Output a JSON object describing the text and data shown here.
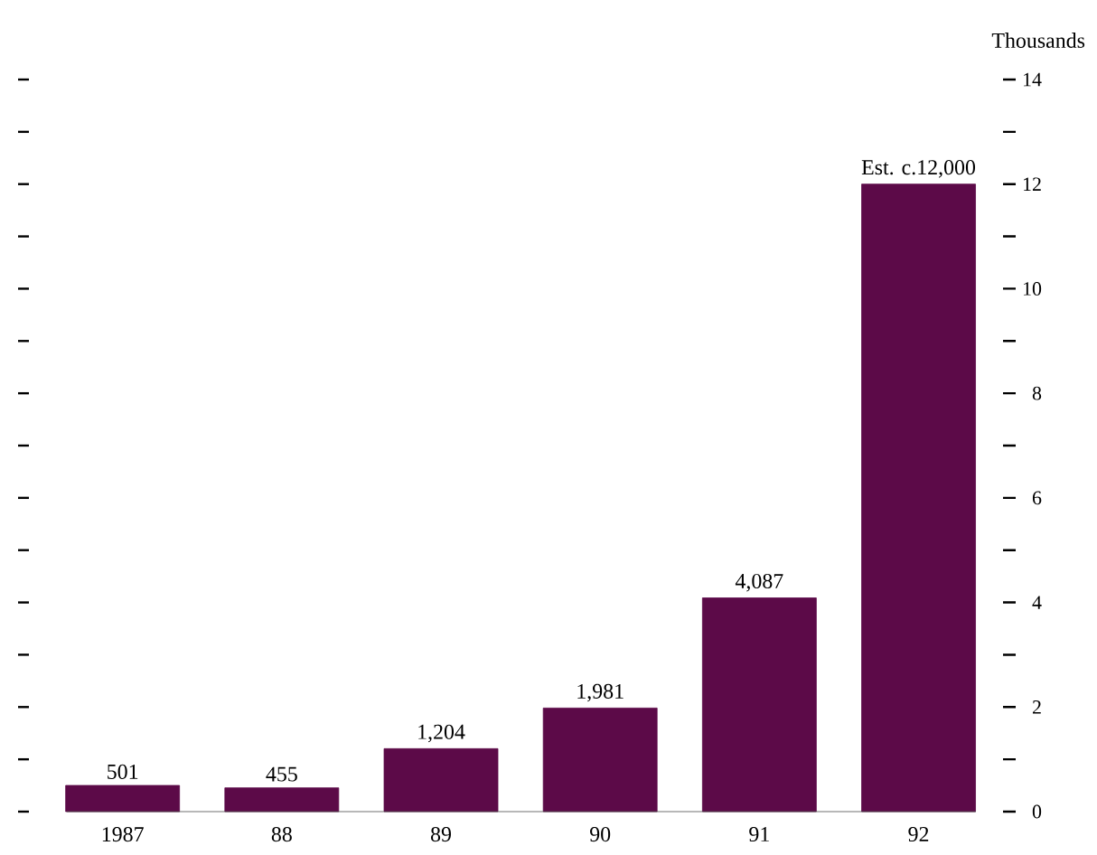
{
  "chart_data": {
    "type": "bar",
    "ylabel": "Thousands",
    "categories": [
      "1987",
      "88",
      "89",
      "90",
      "91",
      "92"
    ],
    "values": [
      0.501,
      0.455,
      1.204,
      1.981,
      4.087,
      12
    ],
    "annotations": [
      {
        "text": "501",
        "x": "1987",
        "y": 0.501
      },
      {
        "text": "455",
        "x": "88",
        "y": 0.455
      },
      {
        "text": "1,204",
        "x": "89",
        "y": 1.204
      },
      {
        "text": "1,981",
        "x": "90",
        "y": 1.981
      },
      {
        "text": "4,087",
        "x": "91",
        "y": 4.087
      },
      {
        "text": "Est. c.12,000",
        "x": "92",
        "y": 12
      }
    ],
    "color": "#5c0a48",
    "ylim": [
      0,
      14
    ],
    "yticks": [
      0,
      2,
      4,
      6,
      8,
      10,
      12,
      14
    ]
  }
}
